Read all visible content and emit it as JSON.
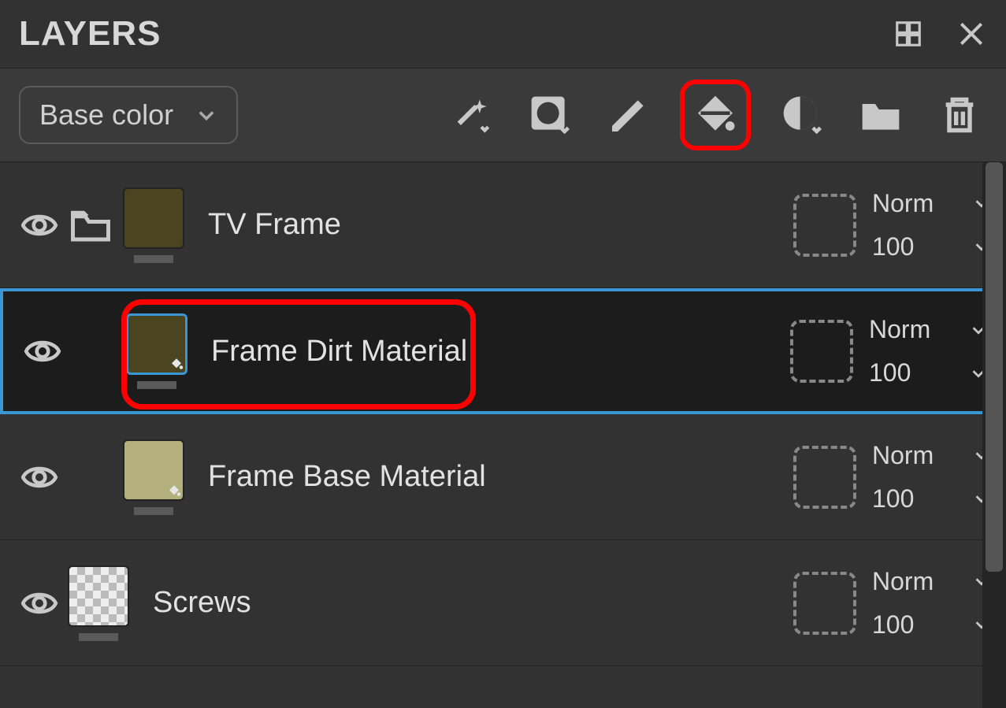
{
  "panel": {
    "title": "LAYERS"
  },
  "toolbar": {
    "dropdown_label": "Base color",
    "highlighted_tool_index": 3
  },
  "colors": {
    "panel_bg": "#323232",
    "toolbar_bg": "#3a3a3a",
    "selected_bg": "#1c1c1c",
    "selection_border": "#3a97d4",
    "highlight_border": "#ff0000",
    "text": "#d8d8d8",
    "divider": "#222222",
    "scrollbar_track": "#252525",
    "scrollbar_thumb": "#555555"
  },
  "layers": [
    {
      "name": "TV Frame",
      "visible": true,
      "is_folder": true,
      "indent": 0,
      "thumb_color": "#4a4520",
      "thumb_checker": false,
      "has_fill_badge": false,
      "blend_mode": "Norm",
      "opacity": "100",
      "selected": false,
      "highlighted": false
    },
    {
      "name": "Frame Dirt Material",
      "visible": true,
      "is_folder": false,
      "indent": 1,
      "thumb_color": "#4a4520",
      "thumb_checker": false,
      "has_fill_badge": true,
      "blend_mode": "Norm",
      "opacity": "100",
      "selected": true,
      "highlighted": true
    },
    {
      "name": "Frame Base Material",
      "visible": true,
      "is_folder": false,
      "indent": 1,
      "thumb_color": "#b4b07e",
      "thumb_checker": false,
      "has_fill_badge": true,
      "blend_mode": "Norm",
      "opacity": "100",
      "selected": false,
      "highlighted": false
    },
    {
      "name": "Screws",
      "visible": true,
      "is_folder": false,
      "indent": 0,
      "thumb_color": "",
      "thumb_checker": true,
      "has_fill_badge": false,
      "blend_mode": "Norm",
      "opacity": "100",
      "selected": false,
      "highlighted": false
    }
  ],
  "typography": {
    "title_fontsize": 44,
    "layer_name_fontsize": 38,
    "dropdown_fontsize": 36,
    "blend_fontsize": 32
  }
}
